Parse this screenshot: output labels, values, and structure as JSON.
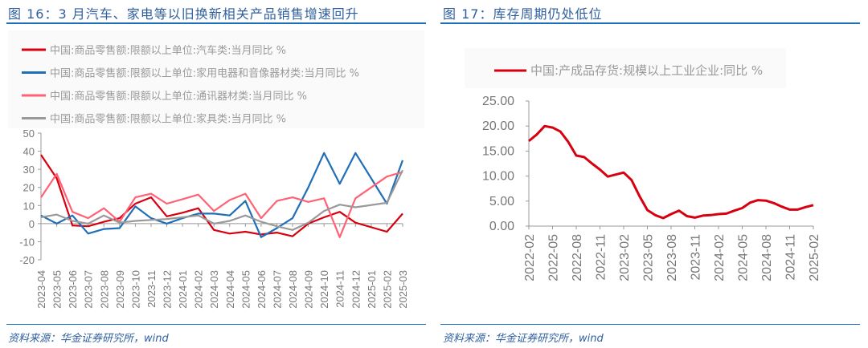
{
  "left": {
    "title": "图 16：3 月汽车、家电等以旧换新相关产品销售增速回升",
    "source": "资料来源：华金证券研究所，wind"
  },
  "right": {
    "title": "图 17：库存周期仍处低位",
    "source": "资料来源：华金证券研究所，wind"
  },
  "chart_data": [
    {
      "type": "line",
      "categories": [
        "2023-04",
        "2023-05",
        "2023-06",
        "2023-07",
        "2023-08",
        "2023-09",
        "2023-10",
        "2023-11",
        "2023-12",
        "2024-01",
        "2024-02",
        "2024-03",
        "2024-04",
        "2024-05",
        "2024-06",
        "2024-07",
        "2024-08",
        "2024-09",
        "2024-10",
        "2024-11",
        "2024-12",
        "2025-01",
        "2025-02",
        "2025-03"
      ],
      "ylim": [
        -20,
        50
      ],
      "yticks": [
        "-20",
        "-10",
        "0",
        "10",
        "20",
        "30",
        "40",
        "50"
      ],
      "ytick_values": [
        -20,
        -10,
        0,
        10,
        20,
        30,
        40,
        50
      ],
      "legend": "top",
      "grid": false,
      "series": [
        {
          "name": "中国:商品零售额:限额以上单位:汽车类:当月同比 %",
          "color": "#d7000f",
          "values": [
            38,
            25,
            -1,
            -1.5,
            1,
            3,
            11,
            14.5,
            4,
            6,
            8.5,
            -3.5,
            -5.5,
            -4.5,
            -6,
            -5,
            -7,
            0,
            3.5,
            6.5,
            0.5,
            null,
            -4.5,
            5.5
          ]
        },
        {
          "name": "中国:商品零售额:限额以上单位:家用电器和音像器材类:当月同比 %",
          "color": "#1f6fb8",
          "values": [
            4.5,
            0,
            4.5,
            -5.5,
            -3,
            -2.5,
            9.5,
            3,
            0,
            3,
            5.5,
            5.5,
            4.5,
            12.5,
            -7.5,
            -2.5,
            3,
            20,
            39,
            22,
            39,
            null,
            11,
            35
          ]
        },
        {
          "name": "中国:商品零售额:限额以上单位:通讯器材类:当月同比 %",
          "color": "#ff6274",
          "values": [
            14.5,
            27.5,
            6.5,
            3,
            8.5,
            1,
            14.5,
            16.5,
            11,
            13.5,
            16,
            7,
            13,
            16.5,
            3,
            12.5,
            14.5,
            12,
            14,
            -7.5,
            14,
            null,
            26,
            28.5
          ]
        },
        {
          "name": "中国:商品零售额:限额以上单位:家具类:当月同比 %",
          "color": "#999999",
          "values": [
            3.5,
            5,
            1.5,
            0,
            4.5,
            0.5,
            1.5,
            2,
            2.5,
            3.5,
            4.5,
            0,
            1.5,
            4.5,
            1,
            -1.5,
            -3.5,
            0.5,
            7,
            10.5,
            9,
            null,
            11.5,
            29.5
          ]
        }
      ]
    },
    {
      "type": "line",
      "categories": [
        "2022-02",
        "2022-03",
        "2022-04",
        "2022-05",
        "2022-06",
        "2022-07",
        "2022-08",
        "2022-09",
        "2022-10",
        "2022-11",
        "2022-12",
        "2023-01",
        "2023-02",
        "2023-03",
        "2023-04",
        "2023-05",
        "2023-06",
        "2023-07",
        "2023-08",
        "2023-09",
        "2023-10",
        "2023-11",
        "2023-12",
        "2024-01",
        "2024-02",
        "2024-03",
        "2024-04",
        "2024-05",
        "2024-06",
        "2024-07",
        "2024-08",
        "2024-09",
        "2024-10",
        "2024-11",
        "2024-12",
        "2025-01",
        "2025-02"
      ],
      "xtick_labels": [
        "2022-02",
        "2022-05",
        "2022-08",
        "2022-11",
        "2023-02",
        "2023-05",
        "2023-08",
        "2023-11",
        "2024-02",
        "2024-05",
        "2024-08",
        "2024-11",
        "2025-02"
      ],
      "ylim": [
        0,
        25
      ],
      "yticks": [
        "0.00",
        "5.00",
        "10.00",
        "15.00",
        "20.00",
        "25.00"
      ],
      "ytick_values": [
        0,
        5,
        10,
        15,
        20,
        25
      ],
      "legend": "top",
      "grid": false,
      "series": [
        {
          "name": "中国:产成品存货:规模以上工业企业:同比 %",
          "color": "#d7000f",
          "values": [
            17,
            18.3,
            20,
            19.7,
            18.9,
            16.8,
            14.1,
            13.8,
            12.5,
            11.3,
            9.9,
            10.3,
            10.7,
            9.2,
            6,
            3.2,
            2.2,
            1.6,
            2.4,
            3.1,
            2,
            1.7,
            2.1,
            2.2,
            2.4,
            2.5,
            3.1,
            3.6,
            4.7,
            5.2,
            5.1,
            4.6,
            3.9,
            3.3,
            3.3,
            3.8,
            4.2
          ]
        }
      ]
    }
  ]
}
